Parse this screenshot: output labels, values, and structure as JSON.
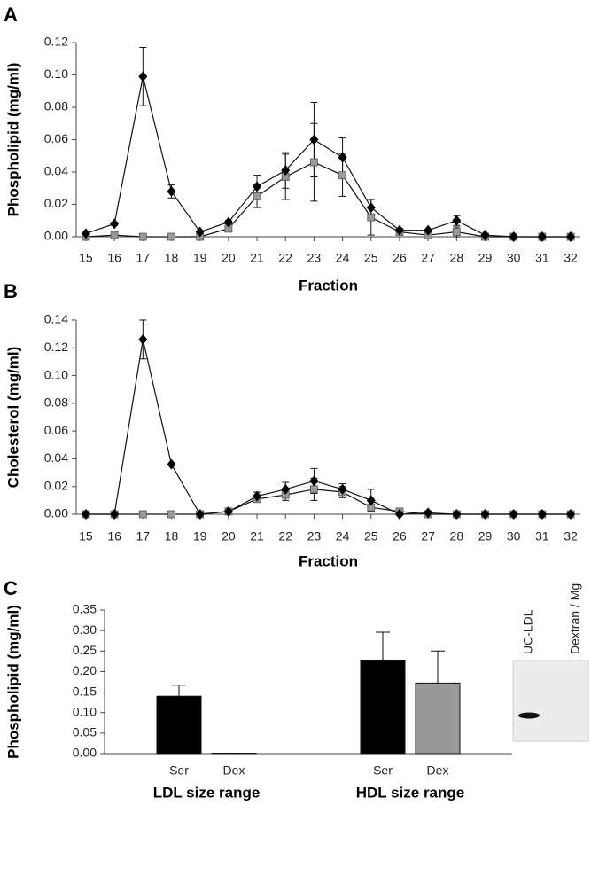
{
  "chart_data": [
    {
      "type": "line",
      "panel_label": "A",
      "ylabel": "Phospholipid (mg/ml)",
      "xlabel": "Fraction",
      "x": [
        15,
        16,
        17,
        18,
        19,
        20,
        21,
        22,
        23,
        24,
        25,
        26,
        27,
        28,
        29,
        30,
        31,
        32
      ],
      "xlim": [
        14.66,
        32.34
      ],
      "xticks": [
        15,
        16,
        17,
        18,
        19,
        20,
        21,
        22,
        23,
        24,
        25,
        26,
        27,
        28,
        29,
        30,
        31,
        32
      ],
      "ylim": [
        0,
        0.12
      ],
      "yticks": [
        {
          "value": 0,
          "label": "0.00"
        },
        {
          "value": 0.02,
          "label": "0.02"
        },
        {
          "value": 0.04,
          "label": "0.04"
        },
        {
          "value": 0.06,
          "label": "0.06"
        },
        {
          "value": 0.08,
          "label": "0.08"
        },
        {
          "value": 0.1,
          "label": "0.10"
        },
        {
          "value": 0.12,
          "label": "0.12"
        }
      ],
      "series": [
        {
          "color": "#000000",
          "marker": "diamond",
          "values": [
            0.002,
            0.008,
            0.099,
            0.028,
            0.003,
            0.009,
            0.031,
            0.041,
            0.06,
            0.049,
            0.018,
            0.004,
            0.004,
            0.01,
            0.001,
            0,
            0,
            0
          ],
          "errors": [
            0,
            0.001,
            0.018,
            0.004,
            0,
            0.001,
            0.007,
            0.011,
            0.023,
            0.012,
            0.005,
            0,
            0,
            0.003,
            0,
            0,
            0,
            0
          ]
        },
        {
          "color": "#999999",
          "marker": "square",
          "values": [
            0,
            0.001,
            0,
            0,
            0,
            0.005,
            0.025,
            0.037,
            0.046,
            0.038,
            0.012,
            0.003,
            0.001,
            0.003,
            0,
            0,
            0,
            0
          ],
          "errors": [
            0,
            0,
            0,
            0,
            0,
            0,
            0.007,
            0.014,
            0.024,
            0.013,
            0.011,
            0,
            0,
            0.003,
            0,
            0,
            0,
            0
          ]
        }
      ]
    },
    {
      "type": "line",
      "panel_label": "B",
      "ylabel": "Cholesterol (mg/ml)",
      "xlabel": "Fraction",
      "x": [
        15,
        16,
        17,
        18,
        19,
        20,
        21,
        22,
        23,
        24,
        25,
        26,
        27,
        28,
        29,
        30,
        31,
        32
      ],
      "xlim": [
        14.66,
        32.34
      ],
      "xticks": [
        15,
        16,
        17,
        18,
        19,
        20,
        21,
        22,
        23,
        24,
        25,
        26,
        27,
        28,
        29,
        30,
        31,
        32
      ],
      "ylim": [
        0,
        0.14
      ],
      "yticks": [
        {
          "value": 0,
          "label": "0.00"
        },
        {
          "value": 0.02,
          "label": "0.02"
        },
        {
          "value": 0.04,
          "label": "0.04"
        },
        {
          "value": 0.06,
          "label": "0.06"
        },
        {
          "value": 0.08,
          "label": "0.08"
        },
        {
          "value": 0.1,
          "label": "0.10"
        },
        {
          "value": 0.12,
          "label": "0.12"
        },
        {
          "value": 0.14,
          "label": "0.14"
        }
      ],
      "series": [
        {
          "color": "#000000",
          "marker": "diamond",
          "values": [
            0,
            0,
            0.126,
            0.036,
            0,
            0.002,
            0.013,
            0.018,
            0.024,
            0.018,
            0.01,
            0,
            0.001,
            0,
            0,
            0,
            0,
            0
          ],
          "errors": [
            0,
            0,
            0.014,
            0,
            0,
            0,
            0.003,
            0.005,
            0.009,
            0.004,
            0.008,
            0,
            0,
            0,
            0,
            0,
            0,
            0
          ]
        },
        {
          "color": "#999999",
          "marker": "square",
          "values": [
            0,
            0,
            0,
            0,
            0,
            0.002,
            0.011,
            0.014,
            0.018,
            0.016,
            0.005,
            0.002,
            0,
            0,
            0,
            0,
            0,
            0
          ],
          "errors": [
            0,
            0,
            0,
            0,
            0,
            0,
            0,
            0.004,
            0.008,
            0.004,
            0,
            0,
            0,
            0,
            0,
            0,
            0,
            0
          ]
        }
      ]
    },
    {
      "type": "bar",
      "panel_label": "C",
      "ylabel": "Phospholipid (mg/ml)",
      "categories": [
        "Ser",
        "Dex",
        "Ser",
        "Dex"
      ],
      "groups": [
        "LDL size range",
        "HDL size range"
      ],
      "values": [
        0.14,
        0.001,
        0.228,
        0.172
      ],
      "errors": [
        0.027,
        0,
        0.068,
        0.078
      ],
      "colors": [
        "#000000",
        "#000000",
        "#000000",
        "#999999"
      ],
      "ylim": [
        0,
        0.35
      ],
      "yticks": [
        {
          "value": 0,
          "label": "0.00"
        },
        {
          "value": 0.05,
          "label": "0.05"
        },
        {
          "value": 0.1,
          "label": "0.10"
        },
        {
          "value": 0.15,
          "label": "0.15"
        },
        {
          "value": 0.2,
          "label": "0.20"
        },
        {
          "value": 0.25,
          "label": "0.25"
        },
        {
          "value": 0.3,
          "label": "0.30"
        },
        {
          "value": 0.35,
          "label": "0.35"
        }
      ],
      "blot_lanes": [
        "UC-LDL",
        "Dextran / Mg"
      ]
    }
  ]
}
